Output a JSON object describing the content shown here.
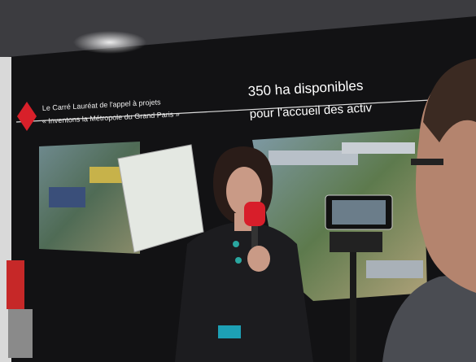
{
  "banner": {
    "left_line1": "Le Carré Lauréat de l'appel à projets",
    "left_line2": "« Inventons la Métropole du Grand Paris »",
    "headline": "350 ha disponibles",
    "subline": "pour l'accueil des activ"
  }
}
